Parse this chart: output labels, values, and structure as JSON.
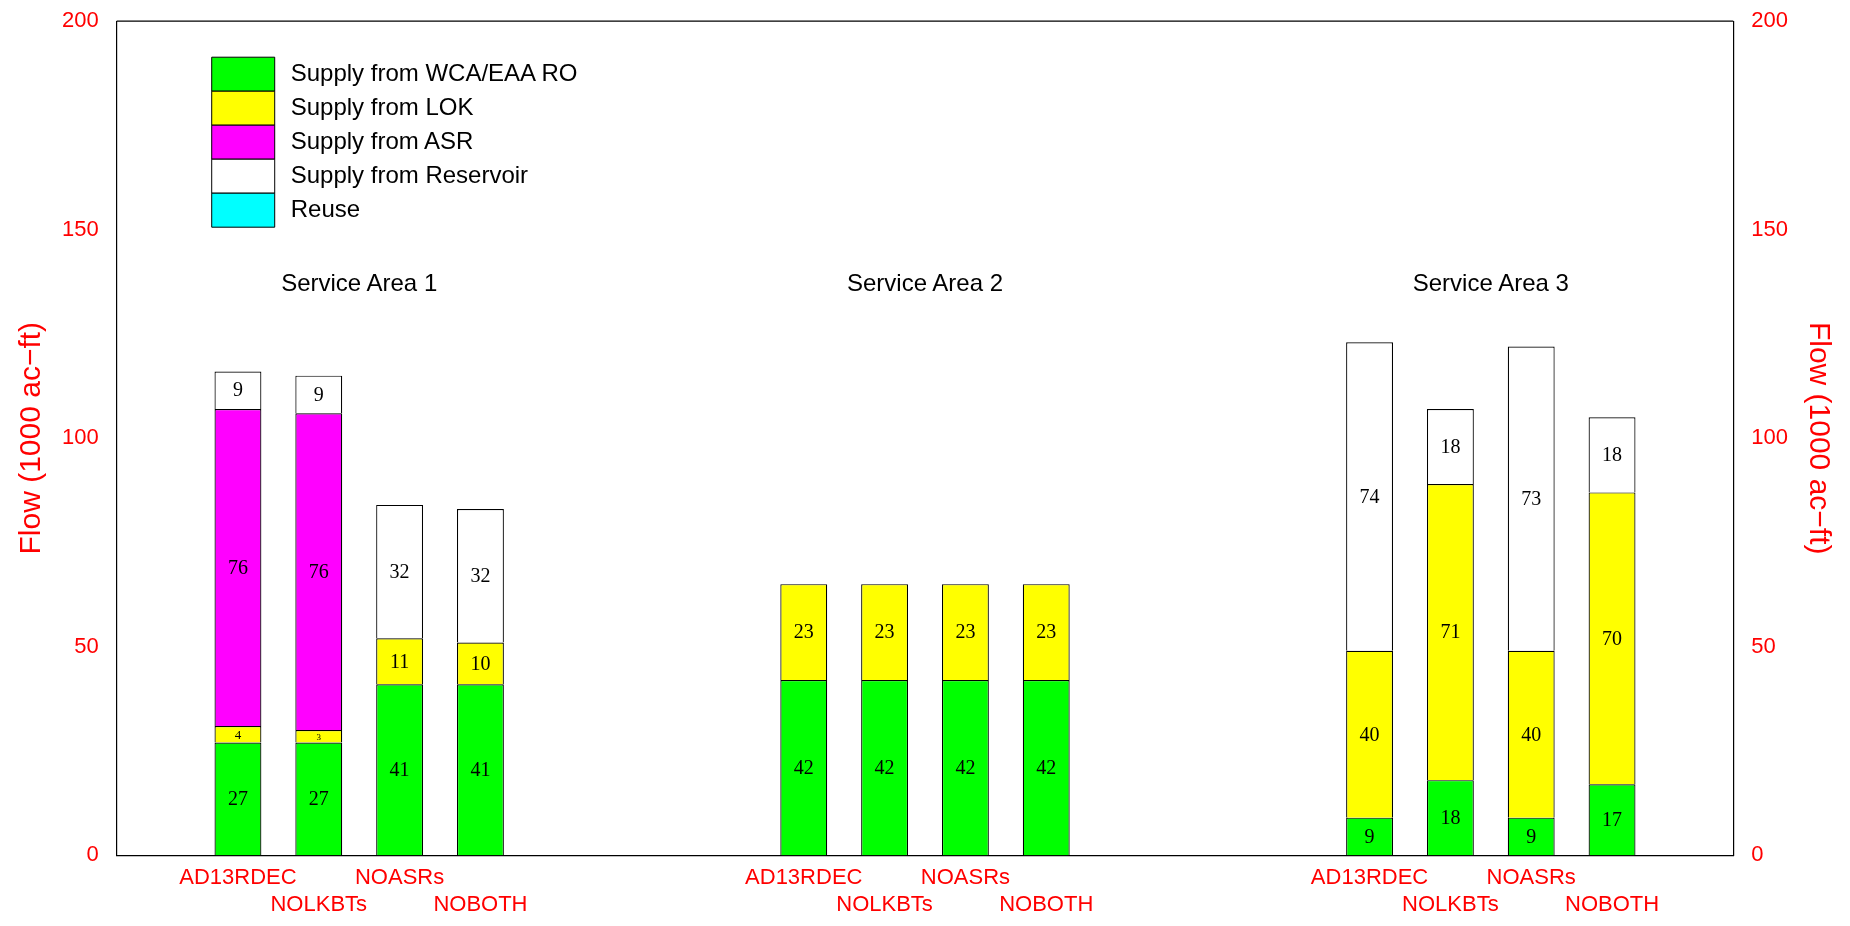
{
  "chart_data": {
    "type": "bar",
    "stacked": true,
    "data_labels": true,
    "legend": "top left",
    "grid": false,
    "ylabel": "Flow (1000 ac−ft)",
    "y2label": "Flow (1000 ac−ft)",
    "ylim": [
      0,
      200
    ],
    "yticks": [
      0,
      50,
      100,
      150,
      200
    ],
    "y2lim": [
      0,
      200
    ],
    "y2ticks": [
      0,
      50,
      100,
      150,
      200
    ],
    "annotations": [
      "Service Area 1",
      "Service Area 2",
      "Service Area 3"
    ],
    "categories": [
      null,
      "AD13RDEC",
      "NOLKBTs",
      "NOASRs",
      "NOBOTH",
      null,
      null,
      null,
      "AD13RDEC",
      "NOLKBTs",
      "NOASRs",
      "NOBOTH",
      null,
      null,
      null,
      "AD13RDEC",
      "NOLKBTs",
      "NOASRs",
      "NOBOTH",
      null
    ],
    "series": [
      {
        "name": "Supply from WCA/EAA RO",
        "color": "#00ff00",
        "values": [
          null,
          27,
          27,
          41,
          41,
          null,
          null,
          null,
          42,
          42,
          42,
          42,
          null,
          null,
          null,
          9,
          18,
          9,
          17,
          null
        ]
      },
      {
        "name": "Supply from LOK",
        "color": "#ffff00",
        "values": [
          null,
          4,
          3,
          11,
          10,
          null,
          null,
          null,
          23,
          23,
          23,
          23,
          null,
          null,
          null,
          40,
          71,
          40,
          70,
          null
        ]
      },
      {
        "name": "Supply from ASR",
        "color": "#ff00ff",
        "values": [
          null,
          76,
          76,
          null,
          null,
          null,
          null,
          null,
          null,
          null,
          null,
          null,
          null,
          null,
          null,
          null,
          null,
          null,
          null,
          null
        ]
      },
      {
        "name": "Supply from Reservoir",
        "color": "#ffffff",
        "values": [
          null,
          9,
          9,
          32,
          32,
          null,
          null,
          null,
          null,
          null,
          null,
          null,
          null,
          null,
          null,
          74,
          18,
          73,
          18,
          null
        ]
      },
      {
        "name": "Reuse",
        "color": "#00ffff",
        "values": [
          null,
          null,
          null,
          null,
          null,
          null,
          null,
          null,
          null,
          null,
          null,
          null,
          null,
          null,
          null,
          null,
          null,
          null,
          null,
          null
        ]
      }
    ]
  }
}
